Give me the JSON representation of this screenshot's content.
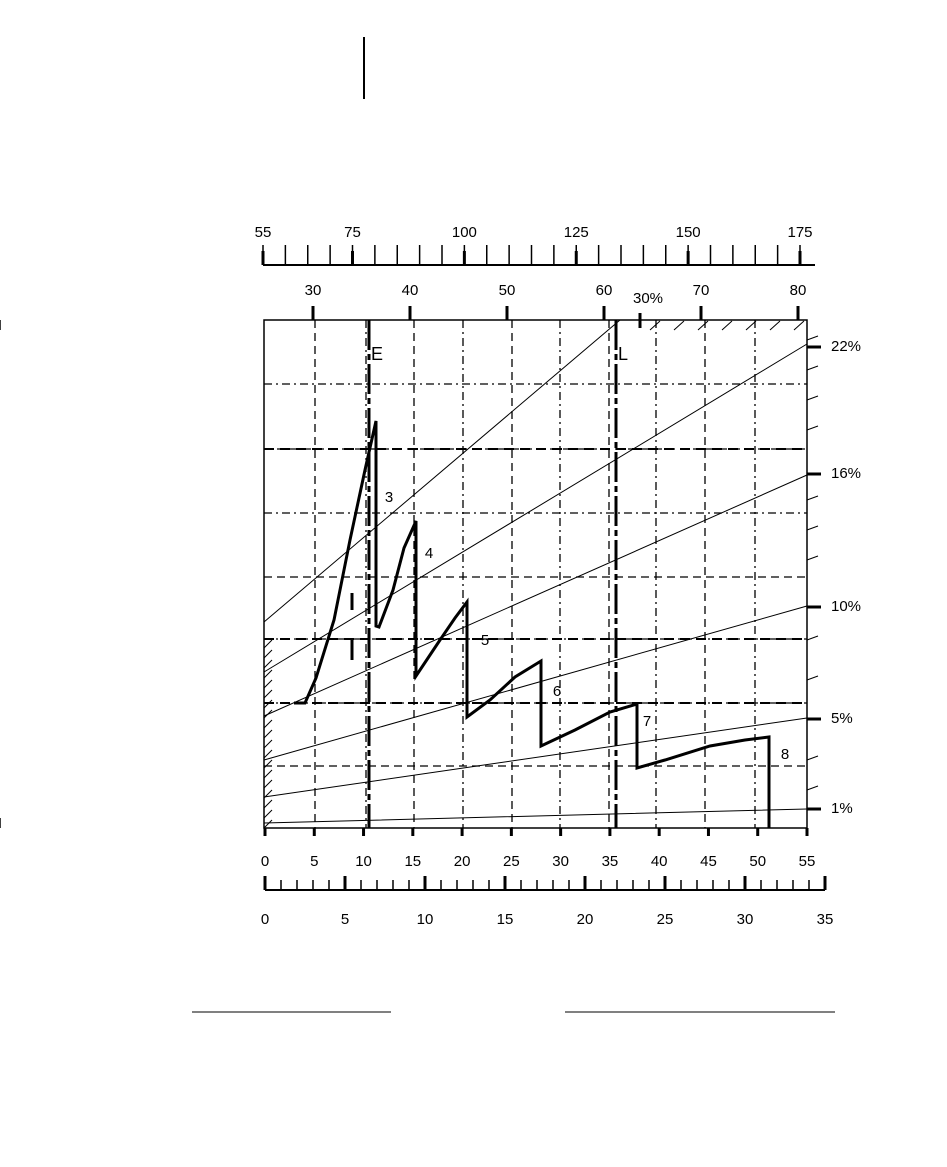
{
  "scales": {
    "top": {
      "labels": [
        55,
        75,
        100,
        125,
        150,
        175
      ]
    },
    "upper": {
      "labels": [
        30,
        40,
        50,
        60,
        70,
        80
      ]
    },
    "bottom": {
      "labels": [
        0,
        5,
        10,
        15,
        20,
        25,
        30,
        35,
        40,
        45,
        50,
        55
      ]
    },
    "lower": {
      "labels": [
        0,
        5,
        10,
        15,
        20,
        25,
        30,
        35
      ]
    }
  },
  "right_labels": [
    "22%",
    "16%",
    "10%",
    "5%",
    "1%"
  ],
  "marker_30": "30%",
  "line_labels": {
    "early": "E",
    "late": "L"
  },
  "gear_labels": [
    "3",
    "4",
    "5",
    "6",
    "7",
    "8"
  ]
}
